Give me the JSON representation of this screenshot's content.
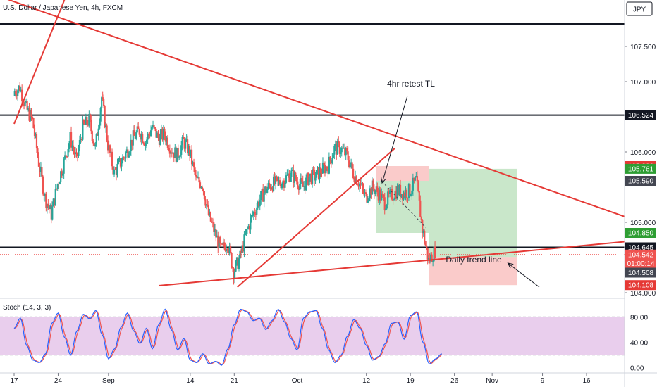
{
  "header": {
    "symbol_title": "U.S. Dollar / Japanese Yen, 4h, FXCM",
    "currency": "JPY"
  },
  "chart_data": {
    "type": "candlestick",
    "title": "U.S. Dollar / Japanese Yen, 4h, FXCM",
    "price_axis": {
      "range": [
        103.93,
        108.16
      ],
      "ticks": [
        "107.500",
        "107.000",
        "106.000",
        "105.000",
        "104.000"
      ],
      "tick_values": [
        107.5,
        107.0,
        106.0,
        105.0,
        104.0
      ]
    },
    "time_axis": {
      "ticks": [
        "17",
        "24",
        "Sep",
        "14",
        "21",
        "Oct",
        "12",
        "19",
        "26",
        "Nov",
        "9",
        "16"
      ],
      "tick_days": [
        0,
        7,
        15,
        28,
        35,
        45,
        56,
        63,
        70,
        76,
        84,
        91
      ]
    },
    "horizontal_lines": [
      107.82,
      106.524,
      104.645
    ],
    "trend_lines": [
      {
        "from": [
          -2,
          108.2
        ],
        "to": [
          106,
          104.8
        ]
      },
      {
        "from": [
          23,
          104.1
        ],
        "to": [
          106,
          104.8
        ]
      },
      {
        "from": [
          35.5,
          104.08
        ],
        "to": [
          60.5,
          106.05
        ]
      },
      {
        "from": [
          0,
          106.4
        ],
        "to": [
          8,
          108.16
        ]
      }
    ],
    "annotations": [
      {
        "text": "4hr retest TL",
        "arrow_to": [
          58.5,
          105.56
        ]
      },
      {
        "text": "Daily trend line",
        "arrow_to": [
          78.5,
          104.42
        ]
      }
    ],
    "positions": [
      {
        "kind": "short",
        "profit": [
          104.85,
          105.59
        ],
        "loss": [
          105.59,
          105.8
        ]
      },
      {
        "kind": "long",
        "loss": [
          104.108,
          104.508
        ],
        "profit": [
          104.508,
          105.761
        ]
      }
    ],
    "price_tags": [
      {
        "label": "106.524",
        "price": 106.524,
        "color": "#131722"
      },
      {
        "label": "105.800",
        "price": 105.8,
        "color": "#e53935"
      },
      {
        "label": "105.761",
        "price": 105.761,
        "color": "#2e9e33"
      },
      {
        "label": "105.590",
        "price": 105.59,
        "color": "#434651"
      },
      {
        "label": "104.850",
        "price": 104.85,
        "color": "#2e9e33"
      },
      {
        "label": "104.645",
        "price": 104.645,
        "color": "#131722"
      },
      {
        "label": "104.542",
        "price": 104.542,
        "color": "#ef5350"
      },
      {
        "label": "01:00:14",
        "price": 104.415,
        "color": "#ef5350"
      },
      {
        "label": "104.508",
        "price": 104.285,
        "color": "#434651"
      },
      {
        "label": "104.108",
        "price": 104.108,
        "color": "#e53935"
      }
    ],
    "candles": {
      "up_color": "#26a69a",
      "down_color": "#ef5350",
      "closes": [
        [
          0,
          106.85
        ],
        [
          1,
          106.92
        ],
        [
          2,
          106.62
        ],
        [
          3,
          106.45
        ],
        [
          4,
          105.85
        ],
        [
          5,
          105.35
        ],
        [
          6,
          105.12
        ],
        [
          7,
          105.55
        ],
        [
          8,
          105.85
        ],
        [
          9,
          106.2
        ],
        [
          10,
          105.88
        ],
        [
          11,
          106.35
        ],
        [
          12,
          106.45
        ],
        [
          13,
          106.05
        ],
        [
          14,
          106.78
        ],
        [
          15,
          106.1
        ],
        [
          16,
          105.7
        ],
        [
          17,
          105.85
        ],
        [
          18,
          106.0
        ],
        [
          19,
          106.2
        ],
        [
          20,
          106.3
        ],
        [
          21,
          106.15
        ],
        [
          22,
          106.35
        ],
        [
          23,
          106.2
        ],
        [
          24,
          106.25
        ],
        [
          25,
          106.05
        ],
        [
          26,
          105.95
        ],
        [
          27,
          106.15
        ],
        [
          28,
          106.0
        ],
        [
          29,
          105.6
        ],
        [
          30,
          105.55
        ],
        [
          31,
          105.1
        ],
        [
          32,
          104.85
        ],
        [
          33,
          104.6
        ],
        [
          34,
          104.72
        ],
        [
          35,
          104.3
        ],
        [
          36,
          104.5
        ],
        [
          37,
          104.85
        ],
        [
          38,
          105.1
        ],
        [
          39,
          105.3
        ],
        [
          40,
          105.45
        ],
        [
          41,
          105.55
        ],
        [
          42,
          105.55
        ],
        [
          43,
          105.6
        ],
        [
          44,
          105.7
        ],
        [
          45,
          105.6
        ],
        [
          46,
          105.5
        ],
        [
          47,
          105.65
        ],
        [
          48,
          105.65
        ],
        [
          49,
          105.75
        ],
        [
          50,
          105.8
        ],
        [
          51,
          106.05
        ],
        [
          52,
          106.05
        ],
        [
          53,
          105.95
        ],
        [
          54,
          105.7
        ],
        [
          55,
          105.55
        ],
        [
          56,
          105.35
        ],
        [
          57,
          105.5
        ],
        [
          58,
          105.42
        ],
        [
          59,
          105.28
        ],
        [
          60,
          105.38
        ],
        [
          61,
          105.45
        ],
        [
          62,
          105.42
        ],
        [
          63,
          105.45
        ],
        [
          64,
          105.6
        ],
        [
          65,
          104.9
        ],
        [
          66,
          104.45
        ],
        [
          67,
          104.6
        ]
      ]
    },
    "stochastic": {
      "label": "Stoch (14, 3, 3)",
      "range": [
        -7,
        108
      ],
      "ticks": [
        "80.00",
        "40.00",
        "0.00"
      ],
      "tick_values": [
        80,
        40,
        0
      ],
      "band": [
        20,
        80
      ],
      "k_color": "#2962ff",
      "d_color": "#ef5350",
      "k": [
        [
          0,
          62
        ],
        [
          1,
          78
        ],
        [
          2,
          35
        ],
        [
          3,
          12
        ],
        [
          4,
          8
        ],
        [
          5,
          22
        ],
        [
          6,
          70
        ],
        [
          7,
          86
        ],
        [
          8,
          48
        ],
        [
          9,
          20
        ],
        [
          10,
          58
        ],
        [
          11,
          84
        ],
        [
          12,
          77
        ],
        [
          13,
          90
        ],
        [
          14,
          52
        ],
        [
          15,
          14
        ],
        [
          16,
          30
        ],
        [
          17,
          64
        ],
        [
          18,
          86
        ],
        [
          19,
          58
        ],
        [
          20,
          38
        ],
        [
          21,
          62
        ],
        [
          22,
          30
        ],
        [
          23,
          68
        ],
        [
          24,
          92
        ],
        [
          25,
          60
        ],
        [
          26,
          28
        ],
        [
          27,
          46
        ],
        [
          28,
          12
        ],
        [
          29,
          8
        ],
        [
          30,
          22
        ],
        [
          31,
          6
        ],
        [
          32,
          10
        ],
        [
          33,
          4
        ],
        [
          34,
          30
        ],
        [
          35,
          68
        ],
        [
          36,
          92
        ],
        [
          37,
          88
        ],
        [
          38,
          74
        ],
        [
          39,
          78
        ],
        [
          40,
          60
        ],
        [
          41,
          74
        ],
        [
          42,
          92
        ],
        [
          43,
          72
        ],
        [
          44,
          46
        ],
        [
          45,
          28
        ],
        [
          46,
          78
        ],
        [
          47,
          88
        ],
        [
          48,
          90
        ],
        [
          49,
          62
        ],
        [
          50,
          28
        ],
        [
          51,
          8
        ],
        [
          52,
          20
        ],
        [
          53,
          50
        ],
        [
          54,
          76
        ],
        [
          55,
          62
        ],
        [
          56,
          35
        ],
        [
          57,
          12
        ],
        [
          58,
          18
        ],
        [
          59,
          38
        ],
        [
          60,
          70
        ],
        [
          61,
          72
        ],
        [
          62,
          45
        ],
        [
          63,
          82
        ],
        [
          64,
          88
        ],
        [
          65,
          40
        ],
        [
          66,
          6
        ],
        [
          67,
          14
        ],
        [
          68,
          22
        ]
      ]
    }
  }
}
